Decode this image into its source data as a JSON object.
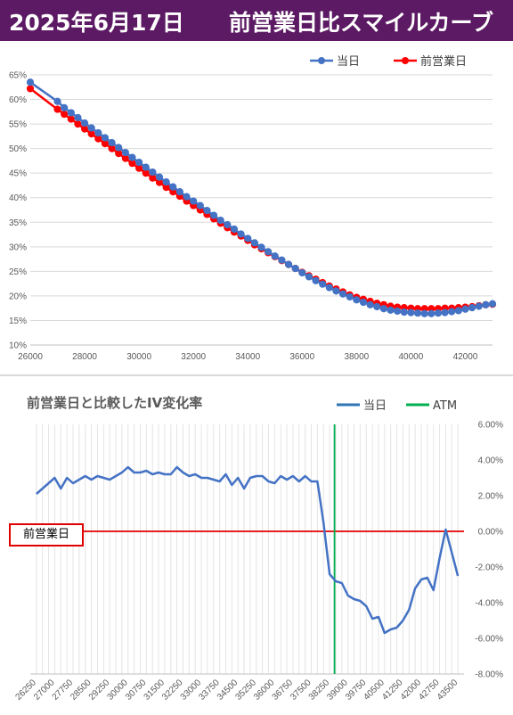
{
  "header": {
    "date": "2025年6月17日",
    "title": "前営業日比スマイルカーブ"
  },
  "chart_data": [
    {
      "type": "line",
      "title": "",
      "legend_position": "top-right",
      "legend": [
        "当日",
        "前営業日"
      ],
      "x_ticks": [
        "26000",
        "28000",
        "30000",
        "32000",
        "34000",
        "36000",
        "38000",
        "40000",
        "42000"
      ],
      "y_ticks": [
        "10%",
        "15%",
        "20%",
        "25%",
        "30%",
        "35%",
        "40%",
        "45%",
        "50%",
        "55%",
        "60%",
        "65%"
      ],
      "xlim": [
        26000,
        43000
      ],
      "ylim": [
        10,
        65
      ],
      "grid": "horizontal",
      "series": [
        {
          "name": "当日",
          "color": "#4472c4",
          "x": [
            26000,
            27000,
            27250,
            27500,
            27750,
            28000,
            28250,
            28500,
            28750,
            29000,
            29250,
            29500,
            29750,
            30000,
            30250,
            30500,
            30750,
            31000,
            31250,
            31500,
            31750,
            32000,
            32250,
            32500,
            32750,
            33000,
            33250,
            33500,
            33750,
            34000,
            34250,
            34500,
            34750,
            35000,
            35250,
            35500,
            35750,
            36000,
            36250,
            36500,
            36750,
            37000,
            37250,
            37500,
            37750,
            38000,
            38250,
            38500,
            38750,
            39000,
            39250,
            39500,
            39750,
            40000,
            40250,
            40500,
            40750,
            41000,
            41250,
            41500,
            41750,
            42000,
            42250,
            42500,
            42750,
            43000
          ],
          "y": [
            63.5,
            59.6,
            58.3,
            57.3,
            56.3,
            55.2,
            54.2,
            53.2,
            52.2,
            51.2,
            50.2,
            49.2,
            48.2,
            47.2,
            46.2,
            45.2,
            44.2,
            43.2,
            42.2,
            41.2,
            40.2,
            39.3,
            38.4,
            37.4,
            36.4,
            35.4,
            34.5,
            33.6,
            32.6,
            31.7,
            30.8,
            29.9,
            29.0,
            28.1,
            27.3,
            26.4,
            25.6,
            24.7,
            23.9,
            23.1,
            22.4,
            21.7,
            21.0,
            20.4,
            19.8,
            19.2,
            18.7,
            18.2,
            17.8,
            17.4,
            17.1,
            16.9,
            16.7,
            16.6,
            16.5,
            16.4,
            16.4,
            16.5,
            16.6,
            16.8,
            17.0,
            17.3,
            17.6,
            17.9,
            18.2,
            18.4
          ]
        },
        {
          "name": "前営業日",
          "color": "#ff0000",
          "x": [
            26000,
            27000,
            27250,
            27500,
            27750,
            28000,
            28250,
            28500,
            28750,
            29000,
            29250,
            29500,
            29750,
            30000,
            30250,
            30500,
            30750,
            31000,
            31250,
            31500,
            31750,
            32000,
            32250,
            32500,
            32750,
            33000,
            33250,
            33500,
            33750,
            34000,
            34250,
            34500,
            34750,
            35000,
            35250,
            35500,
            35750,
            36000,
            36250,
            36500,
            36750,
            37000,
            37250,
            37500,
            37750,
            38000,
            38250,
            38500,
            38750,
            39000,
            39250,
            39500,
            39750,
            40000,
            40250,
            40500,
            40750,
            41000,
            41250,
            41500,
            41750,
            42000,
            42250,
            42500,
            42750,
            43000
          ],
          "y": [
            62.2,
            58.0,
            57.0,
            56.0,
            55.0,
            54.0,
            53.0,
            52.0,
            51.0,
            50.0,
            49.0,
            48.0,
            47.0,
            46.0,
            45.0,
            44.0,
            43.1,
            42.1,
            41.2,
            40.3,
            39.3,
            38.4,
            37.5,
            36.6,
            35.7,
            34.8,
            33.9,
            33.0,
            32.2,
            31.3,
            30.4,
            29.6,
            28.8,
            28.0,
            27.2,
            26.4,
            25.6,
            24.8,
            24.1,
            23.4,
            22.7,
            22.0,
            21.4,
            20.8,
            20.2,
            19.7,
            19.3,
            18.9,
            18.5,
            18.2,
            17.9,
            17.7,
            17.6,
            17.5,
            17.4,
            17.4,
            17.4,
            17.4,
            17.5,
            17.5,
            17.6,
            17.7,
            17.8,
            18.0,
            18.2,
            18.3
          ]
        }
      ]
    },
    {
      "type": "line",
      "title": "前営業日と比較したIV変化率",
      "legend_position": "top-right",
      "legend": [
        "当日",
        "ATM"
      ],
      "prev_day_label": "前営業日",
      "x_ticks": [
        "26250",
        "27000",
        "27750",
        "28500",
        "29250",
        "30000",
        "30750",
        "31500",
        "32250",
        "33000",
        "33750",
        "34500",
        "35250",
        "36000",
        "36750",
        "37500",
        "38250",
        "39000",
        "39750",
        "40500",
        "41250",
        "42000",
        "42750",
        "43500"
      ],
      "y_ticks": [
        "6.00%",
        "4.00%",
        "2.00%",
        "0.00%",
        "-2.00%",
        "-4.00%",
        "-6.00%",
        "-8.00%"
      ],
      "xlim": [
        26000,
        43750
      ],
      "ylim": [
        -8,
        6
      ],
      "grid": "vertical",
      "atm_x": 38450,
      "series": [
        {
          "name": "当日",
          "color": "#4472c4",
          "x": [
            26250,
            27000,
            27250,
            27500,
            27750,
            28000,
            28250,
            28500,
            28750,
            29000,
            29250,
            29500,
            29750,
            30000,
            30250,
            30500,
            30750,
            31000,
            31250,
            31500,
            31750,
            32000,
            32250,
            32500,
            32750,
            33000,
            33250,
            33500,
            33750,
            34000,
            34250,
            34500,
            34750,
            35000,
            35250,
            35500,
            35750,
            36000,
            36250,
            36500,
            36750,
            37000,
            37250,
            37500,
            37750,
            38000,
            38250,
            38500,
            38750,
            39000,
            39250,
            39500,
            39750,
            40000,
            40250,
            40500,
            40750,
            41000,
            41250,
            41500,
            41750,
            42000,
            42250,
            42500,
            42750,
            43000,
            43250,
            43500
          ],
          "y": [
            2.1,
            3.0,
            2.4,
            3.0,
            2.7,
            2.9,
            3.1,
            2.9,
            3.1,
            3.0,
            2.9,
            3.1,
            3.3,
            3.6,
            3.3,
            3.3,
            3.4,
            3.2,
            3.3,
            3.2,
            3.2,
            3.6,
            3.3,
            3.1,
            3.2,
            3.0,
            3.0,
            2.9,
            2.8,
            3.2,
            2.6,
            3.0,
            2.4,
            3.0,
            3.1,
            3.1,
            2.8,
            2.7,
            3.1,
            2.9,
            3.1,
            2.8,
            3.1,
            2.8,
            2.8,
            0.5,
            -2.4,
            -2.8,
            -2.9,
            -3.6,
            -3.8,
            -3.9,
            -4.2,
            -4.9,
            -4.8,
            -5.7,
            -5.5,
            -5.4,
            -5.0,
            -4.4,
            -3.2,
            -2.7,
            -2.6,
            -3.3,
            -1.5,
            0.1,
            -1.2,
            -2.5
          ]
        }
      ]
    }
  ]
}
